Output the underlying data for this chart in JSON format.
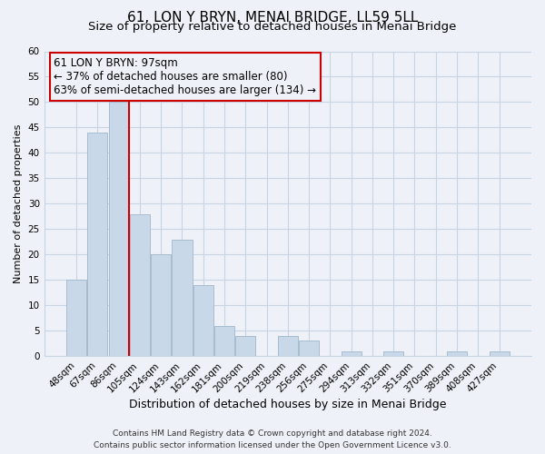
{
  "title": "61, LON Y BRYN, MENAI BRIDGE, LL59 5LL",
  "subtitle": "Size of property relative to detached houses in Menai Bridge",
  "xlabel": "Distribution of detached houses by size in Menai Bridge",
  "ylabel": "Number of detached properties",
  "footer_line1": "Contains HM Land Registry data © Crown copyright and database right 2024.",
  "footer_line2": "Contains public sector information licensed under the Open Government Licence v3.0.",
  "bar_labels": [
    "48sqm",
    "67sqm",
    "86sqm",
    "105sqm",
    "124sqm",
    "143sqm",
    "162sqm",
    "181sqm",
    "200sqm",
    "219sqm",
    "238sqm",
    "256sqm",
    "275sqm",
    "294sqm",
    "313sqm",
    "332sqm",
    "351sqm",
    "370sqm",
    "389sqm",
    "408sqm",
    "427sqm"
  ],
  "bar_values": [
    15,
    44,
    50,
    28,
    20,
    23,
    14,
    6,
    4,
    0,
    4,
    3,
    0,
    1,
    0,
    1,
    0,
    0,
    1,
    0,
    1
  ],
  "bar_color": "#c8d8e8",
  "bar_edge_color": "#a8bcd0",
  "grid_color": "#c8d4e4",
  "background_color": "#eef2f8",
  "annotation_box_text": "61 LON Y BRYN: 97sqm\n← 37% of detached houses are smaller (80)\n63% of semi-detached houses are larger (134) →",
  "vline_x_idx": 2.5,
  "vline_color": "#cc0000",
  "ylim": [
    0,
    60
  ],
  "yticks": [
    0,
    5,
    10,
    15,
    20,
    25,
    30,
    35,
    40,
    45,
    50,
    55,
    60
  ],
  "title_fontsize": 11,
  "subtitle_fontsize": 9.5,
  "xlabel_fontsize": 9,
  "ylabel_fontsize": 8,
  "tick_fontsize": 7.5,
  "annotation_fontsize": 8.5,
  "footer_fontsize": 6.5
}
